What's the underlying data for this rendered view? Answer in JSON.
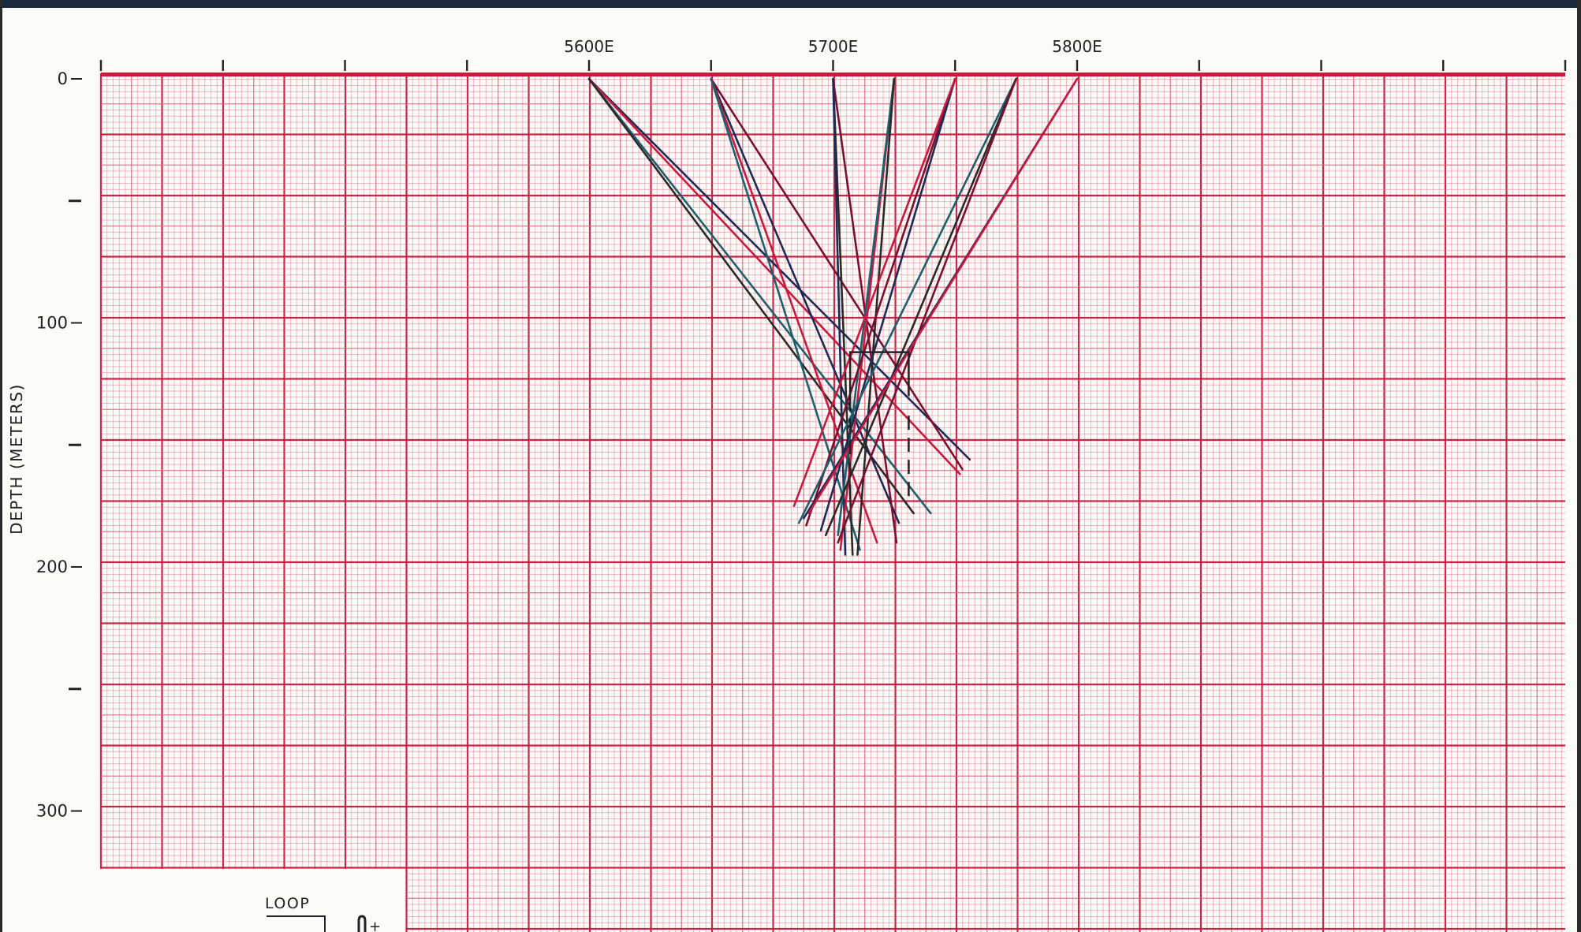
{
  "colors": {
    "grid_major": "#c8193f",
    "grid_minor": "#e3637e",
    "paper": "#fbfbf8",
    "ink": "#222222",
    "trace_colors": [
      "#1f2a55",
      "#c8193f",
      "#1f5f6b",
      "#2a2a2a",
      "#7a1030"
    ]
  },
  "chart_data": {
    "type": "line",
    "title": "",
    "xlabel": "",
    "ylabel": "DEPTH (METERS)",
    "x_tick_labels": [
      {
        "x": 5600,
        "label": "5600E"
      },
      {
        "x": 5700,
        "label": "5700E"
      },
      {
        "x": 5800,
        "label": "5800E"
      }
    ],
    "y_tick_labels": [
      {
        "y": 0,
        "label": "0"
      },
      {
        "y": 100,
        "label": "100"
      },
      {
        "y": 200,
        "label": "200"
      },
      {
        "y": 300,
        "label": "300"
      }
    ],
    "y_minor_ticks": [
      50,
      150,
      250
    ],
    "x_major_ticks": [
      5400,
      5450,
      5500,
      5550,
      5600,
      5650,
      5700,
      5750,
      5800,
      5850,
      5900,
      5950,
      6000
    ],
    "xlim": [
      5400,
      6000
    ],
    "ylim": [
      0,
      325
    ],
    "grid": true,
    "series": [
      {
        "x": [
          5600,
          5756
        ],
        "y": [
          0,
          156
        ]
      },
      {
        "x": [
          5600,
          5752
        ],
        "y": [
          0,
          162
        ]
      },
      {
        "x": [
          5600,
          5740
        ],
        "y": [
          0,
          178
        ]
      },
      {
        "x": [
          5600,
          5733
        ],
        "y": [
          0,
          178
        ]
      },
      {
        "x": [
          5650,
          5753
        ],
        "y": [
          0,
          160
        ]
      },
      {
        "x": [
          5650,
          5727
        ],
        "y": [
          0,
          182
        ]
      },
      {
        "x": [
          5650,
          5718
        ],
        "y": [
          0,
          190
        ]
      },
      {
        "x": [
          5650,
          5711
        ],
        "y": [
          0,
          193
        ]
      },
      {
        "x": [
          5700,
          5708
        ],
        "y": [
          0,
          195
        ]
      },
      {
        "x": [
          5700,
          5726
        ],
        "y": [
          0,
          190
        ]
      },
      {
        "x": [
          5700,
          5705
        ],
        "y": [
          0,
          195
        ]
      },
      {
        "x": [
          5725,
          5703
        ],
        "y": [
          0,
          193
        ]
      },
      {
        "x": [
          5725,
          5702
        ],
        "y": [
          0,
          187
        ]
      },
      {
        "x": [
          5725,
          5710
        ],
        "y": [
          0,
          195
        ]
      },
      {
        "x": [
          5750,
          5689
        ],
        "y": [
          0,
          183
        ]
      },
      {
        "x": [
          5750,
          5695
        ],
        "y": [
          0,
          185
        ]
      },
      {
        "x": [
          5750,
          5684
        ],
        "y": [
          0,
          175
        ]
      },
      {
        "x": [
          5775,
          5686
        ],
        "y": [
          0,
          182
        ]
      },
      {
        "x": [
          5775,
          5697
        ],
        "y": [
          0,
          187
        ]
      },
      {
        "x": [
          5775,
          5702
        ],
        "y": [
          0,
          190
        ]
      },
      {
        "x": [
          5800,
          5688
        ],
        "y": [
          0,
          180
        ]
      },
      {
        "x": [
          5800,
          5690
        ],
        "y": [
          0,
          178
        ]
      }
    ],
    "annotations": [
      {
        "type": "loop-bracket",
        "x0": 5707,
        "x1": 5731,
        "y0": 112,
        "y1": 130
      },
      {
        "type": "dashed-marker",
        "x": 5707,
        "y0": 130,
        "y1": 172
      },
      {
        "type": "dashed-marker",
        "x": 5731,
        "y0": 138,
        "y1": 172
      }
    ]
  },
  "legend": {
    "loop_label": "LOOP",
    "symbol_text": "+",
    "placement": "bottom-left"
  }
}
